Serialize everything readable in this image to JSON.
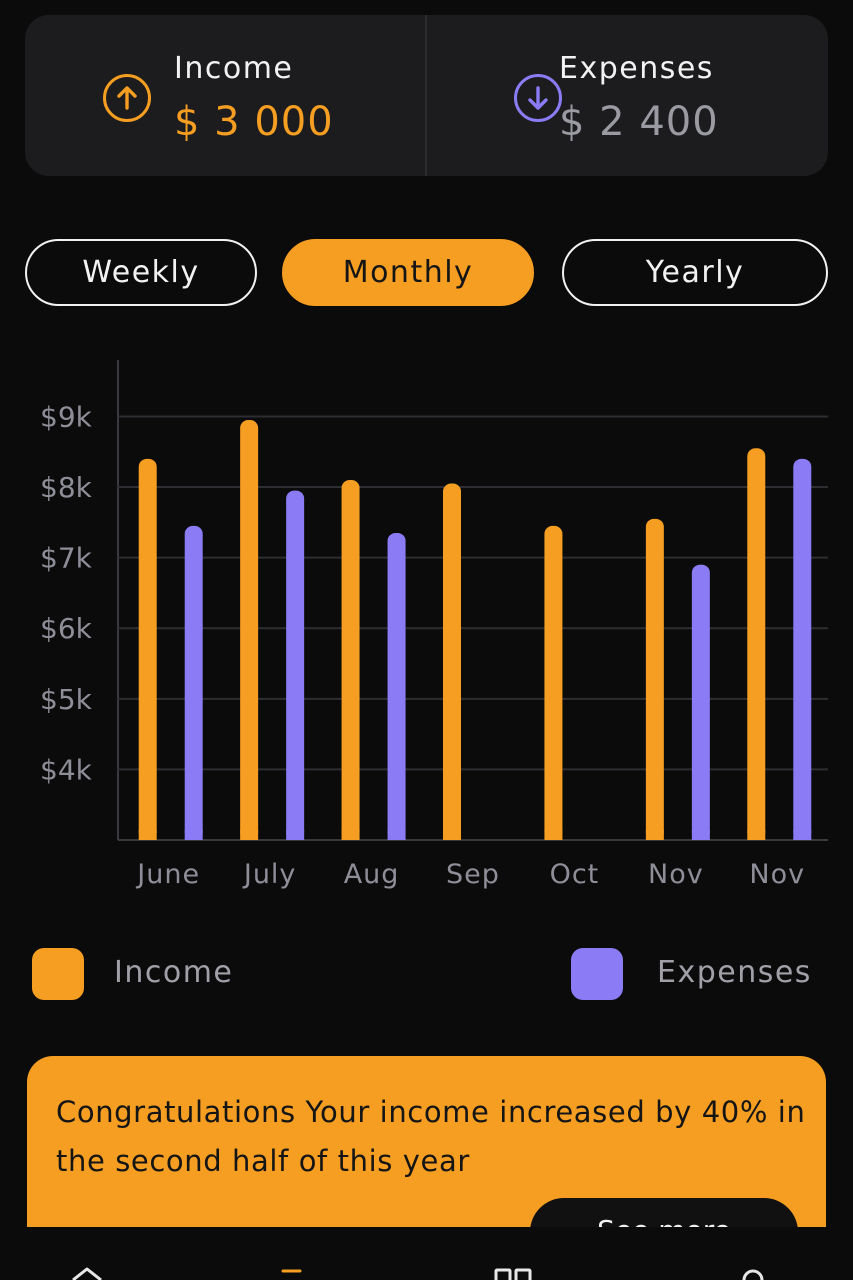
{
  "summary": {
    "income": {
      "label": "Income",
      "value": "$ 3 000",
      "icon": "arrow-up-circle-icon"
    },
    "expenses": {
      "label": "Expenses",
      "value": "$ 2 400",
      "icon": "arrow-down-circle-icon"
    }
  },
  "tabs": [
    {
      "label": "Weekly",
      "active": false
    },
    {
      "label": "Monthly",
      "active": true
    },
    {
      "label": "Yearly",
      "active": false
    }
  ],
  "chart_data": {
    "type": "bar",
    "categories": [
      "June",
      "July",
      "Aug",
      "Sep",
      "Oct",
      "Nov",
      "Nov"
    ],
    "series": [
      {
        "name": "Income",
        "color": "#f59e22",
        "values": [
          8.4,
          8.95,
          8.1,
          8.05,
          7.45,
          7.55,
          8.55
        ]
      },
      {
        "name": "Expenses",
        "color": "#8b7cf6",
        "values": [
          7.45,
          7.95,
          7.35,
          null,
          null,
          6.9,
          8.4
        ]
      }
    ],
    "y_ticks": [
      "$4k",
      "$5k",
      "$6k",
      "$7k",
      "$8k",
      "$9k"
    ],
    "y_tick_values": [
      4,
      5,
      6,
      7,
      8,
      9
    ],
    "ylim": [
      3.0,
      9.8
    ],
    "grid": true,
    "legend_position": "bottom"
  },
  "legend": {
    "income": {
      "label": "Income",
      "color": "#f59e22"
    },
    "expenses": {
      "label": "Expenses",
      "color": "#8b7cf6"
    }
  },
  "banner": {
    "text": "Congratulations Your income increased by 40% in the second half of this year",
    "button_label": "See more"
  },
  "nav": {
    "items": [
      "home-icon",
      "chart-icon",
      "grid-icon",
      "profile-icon"
    ]
  }
}
